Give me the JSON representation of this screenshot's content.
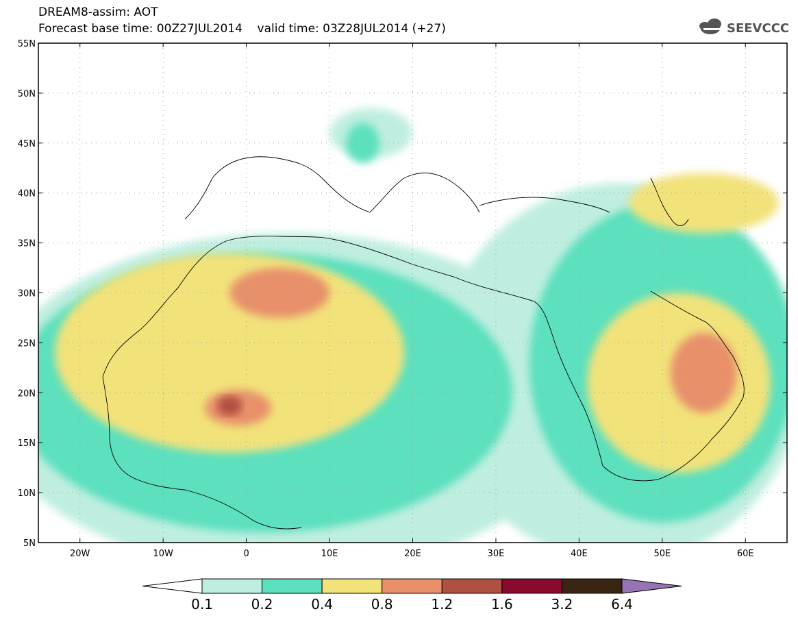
{
  "header": {
    "line1": "DREAM8-assim: AOT",
    "line2": "Forecast base time: 00Z27JUL2014    valid time: 03Z28JUL2014 (+27)",
    "logo_text": "SEEVCCC"
  },
  "map": {
    "lon_range": [
      -25,
      65
    ],
    "lat_range": [
      5,
      55
    ],
    "lat_ticks": [
      {
        "value": 55,
        "label": "55N"
      },
      {
        "value": 50,
        "label": "50N"
      },
      {
        "value": 45,
        "label": "45N"
      },
      {
        "value": 40,
        "label": "40N"
      },
      {
        "value": 35,
        "label": "35N"
      },
      {
        "value": 30,
        "label": "30N"
      },
      {
        "value": 25,
        "label": "25N"
      },
      {
        "value": 20,
        "label": "20N"
      },
      {
        "value": 15,
        "label": "15N"
      },
      {
        "value": 10,
        "label": "10N"
      },
      {
        "value": 5,
        "label": "5N"
      }
    ],
    "lon_ticks": [
      {
        "value": -20,
        "label": "20W"
      },
      {
        "value": -10,
        "label": "10W"
      },
      {
        "value": 0,
        "label": "0"
      },
      {
        "value": 10,
        "label": "10E"
      },
      {
        "value": 20,
        "label": "20E"
      },
      {
        "value": 30,
        "label": "30E"
      },
      {
        "value": 40,
        "label": "40E"
      },
      {
        "value": 50,
        "label": "50E"
      },
      {
        "value": 60,
        "label": "60E"
      }
    ],
    "gridlines": true
  },
  "colorbar": {
    "colors": [
      "#bfeee0",
      "#5ce0bd",
      "#f2e27a",
      "#e8906a",
      "#b05040",
      "#880a2e",
      "#3a2414"
    ],
    "under_color": "#ffffff",
    "over_color": "#9575b5",
    "labels": [
      "0.1",
      "0.2",
      "0.4",
      "0.8",
      "1.2",
      "1.6",
      "3.2",
      "6.4"
    ]
  },
  "aot_fields": [
    {
      "level": 0,
      "color": "#bfeee0",
      "regions": [
        {
          "lon": 5,
          "lat": 19,
          "rlon": 36,
          "rlat": 17
        },
        {
          "lon": 45,
          "lat": 22,
          "rlon": 22,
          "rlat": 19
        },
        {
          "lon": 15,
          "lat": 46,
          "rlon": 5,
          "rlat": 2.5
        }
      ]
    },
    {
      "level": 1,
      "color": "#5ce0bd",
      "regions": [
        {
          "lon": 2,
          "lat": 20,
          "rlon": 30,
          "rlat": 14
        },
        {
          "lon": 50,
          "lat": 23,
          "rlon": 16,
          "rlat": 16
        },
        {
          "lon": 14,
          "lat": 45,
          "rlon": 2,
          "rlat": 2
        }
      ]
    },
    {
      "level": 2,
      "color": "#f2e27a",
      "regions": [
        {
          "lon": -2,
          "lat": 24,
          "rlon": 21,
          "rlat": 10
        },
        {
          "lon": 52,
          "lat": 21,
          "rlon": 11,
          "rlat": 9
        },
        {
          "lon": 55,
          "lat": 39,
          "rlon": 9,
          "rlat": 3
        }
      ]
    },
    {
      "level": 3,
      "color": "#e8906a",
      "regions": [
        {
          "lon": 4,
          "lat": 30,
          "rlon": 6,
          "rlat": 2.5
        },
        {
          "lon": -1,
          "lat": 18.5,
          "rlon": 4,
          "rlat": 1.8
        },
        {
          "lon": 55,
          "lat": 22,
          "rlon": 4,
          "rlat": 4
        }
      ]
    },
    {
      "level": 4,
      "color": "#b05040",
      "regions": [
        {
          "lon": -2,
          "lat": 18.7,
          "rlon": 1.5,
          "rlat": 1
        }
      ]
    }
  ]
}
